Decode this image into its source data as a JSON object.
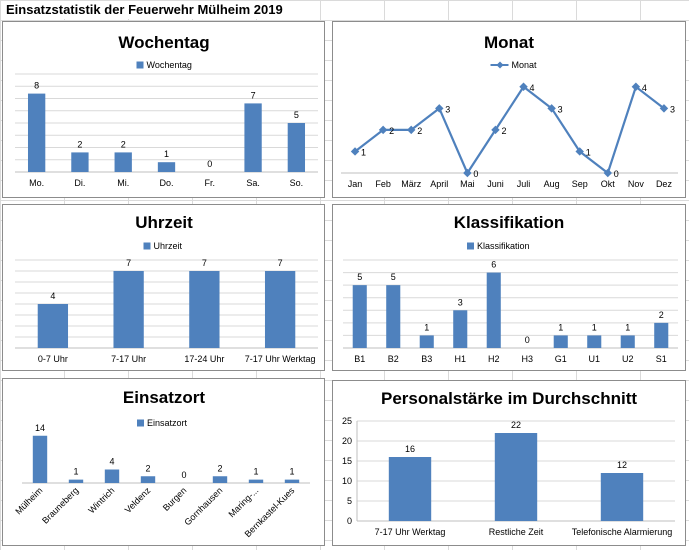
{
  "sheet": {
    "title": "Einsatzstatistik der Feuerwehr Mülheim 2019"
  },
  "colors": {
    "bar": "#4f81bd",
    "grid": "#d9d9d9",
    "axis": "#bfbfbf"
  },
  "chart_data": [
    {
      "id": "wochentag",
      "type": "bar",
      "title": "Wochentag",
      "legend": "top",
      "series": [
        {
          "name": "Wochentag",
          "values": [
            8,
            2,
            2,
            1,
            0,
            7,
            5
          ]
        }
      ],
      "categories": [
        "Mo.",
        "Di.",
        "Mi.",
        "Do.",
        "Fr.",
        "Sa.",
        "So."
      ],
      "ylim": [
        0,
        10
      ],
      "grid": true
    },
    {
      "id": "monat",
      "type": "line",
      "title": "Monat",
      "legend": "top",
      "series": [
        {
          "name": "Monat",
          "values": [
            1,
            2,
            2,
            3,
            0,
            2,
            4,
            3,
            1,
            0,
            4,
            3
          ]
        }
      ],
      "categories": [
        "Jan",
        "Feb",
        "März",
        "April",
        "Mai",
        "Juni",
        "Juli",
        "Aug",
        "Sep",
        "Okt",
        "Nov",
        "Dez"
      ],
      "ylim": [
        0,
        4.5
      ],
      "grid": false
    },
    {
      "id": "uhrzeit",
      "type": "bar",
      "title": "Uhrzeit",
      "legend": "top",
      "series": [
        {
          "name": "Uhrzeit",
          "values": [
            4,
            7,
            7,
            7
          ]
        }
      ],
      "categories": [
        "0-7 Uhr",
        "7-17 Uhr",
        "17-24 Uhr",
        "7-17 Uhr Werktag"
      ],
      "ylim": [
        0,
        8
      ],
      "grid": true
    },
    {
      "id": "klassifikation",
      "type": "bar",
      "title": "Klassifikation",
      "legend": "top",
      "series": [
        {
          "name": "Klassifikation",
          "values": [
            5,
            5,
            1,
            3,
            6,
            0,
            1,
            1,
            1,
            2
          ]
        }
      ],
      "categories": [
        "B1",
        "B2",
        "B3",
        "H1",
        "H2",
        "H3",
        "G1",
        "U1",
        "U2",
        "S1"
      ],
      "ylim": [
        0,
        7
      ],
      "grid": true
    },
    {
      "id": "einsatzort",
      "type": "bar",
      "title": "Einsatzort",
      "legend": "right",
      "series": [
        {
          "name": "Einsatzort",
          "values": [
            14,
            1,
            4,
            2,
            0,
            2,
            1,
            1
          ]
        }
      ],
      "categories": [
        "Mülheim",
        "Brauneberg",
        "Wintrich",
        "Veldenz",
        "Burgen",
        "Gornhausen",
        "Maring-...",
        "Bernkastel-Kues"
      ],
      "ylim": [
        0,
        16
      ],
      "grid": false
    },
    {
      "id": "personal",
      "type": "bar",
      "title": "Personalstärke im Durchschnitt",
      "series": [
        {
          "values": [
            16,
            22,
            12
          ]
        }
      ],
      "categories": [
        "7-17 Uhr Werktag",
        "Restliche Zeit",
        "Telefonische Alarmierung"
      ],
      "ylim": [
        0,
        25
      ],
      "yticks": [
        0,
        5,
        10,
        15,
        20,
        25
      ],
      "grid": true
    }
  ]
}
